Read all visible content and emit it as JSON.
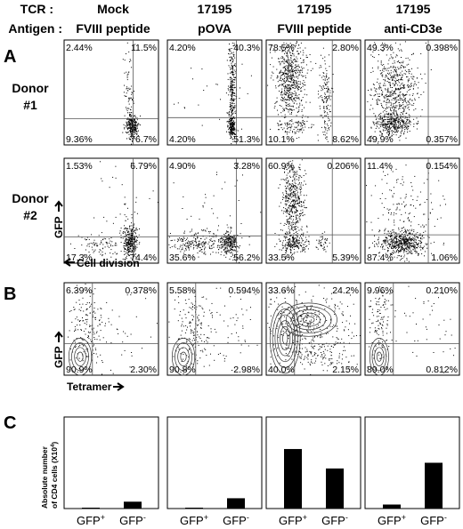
{
  "header": {
    "tcr_label": "TCR :",
    "antigen_label": "Antigen :",
    "columns": [
      {
        "tcr": "Mock",
        "antigen": "FVIII peptide"
      },
      {
        "tcr": "17195",
        "antigen": "pOVA"
      },
      {
        "tcr": "17195",
        "antigen": "FVIII peptide"
      },
      {
        "tcr": "17195",
        "antigen": "anti-CD3e"
      }
    ]
  },
  "panel_a": {
    "letter": "A",
    "donors": [
      {
        "label_line1": "Donor",
        "label_line2": "#1",
        "quadrants": [
          {
            "ul": "2.44%",
            "ur": "11.5%",
            "ll": "9.36%",
            "lr": "76.7%"
          },
          {
            "ul": "4.20%",
            "ur": "40.3%",
            "ll": "4.20%",
            "lr": "51.3%"
          },
          {
            "ul": "78.5%",
            "ur": "2.80%",
            "ll": "10.1%",
            "lr": "8.62%"
          },
          {
            "ul": "49.3%",
            "ur": "0.398%",
            "ll": "49.9%",
            "lr": "0.357%"
          }
        ]
      },
      {
        "label_line1": "Donor",
        "label_line2": "#2",
        "quadrants": [
          {
            "ul": "1.53%",
            "ur": "6.79%",
            "ll": "17.3%",
            "lr": "74.4%"
          },
          {
            "ul": "4.90%",
            "ur": "3.28%",
            "ll": "35.6%",
            "lr": "56.2%"
          },
          {
            "ul": "60.9%",
            "ur": "0.206%",
            "ll": "33.5%",
            "lr": "5.39%"
          },
          {
            "ul": "11.4%",
            "ur": "0.154%",
            "ll": "87.4%",
            "lr": "1.06%"
          }
        ]
      }
    ],
    "y_axis_label": "GFP",
    "x_axis_label": "Cell division"
  },
  "panel_b": {
    "letter": "B",
    "quadrants": [
      {
        "ul": "6.39%",
        "ur": "0.378%",
        "ll": "90.9%",
        "lr": "2.30%"
      },
      {
        "ul": "5.58%",
        "ur": "0.594%",
        "ll": "90.8%",
        "lr": "2.98%"
      },
      {
        "ul": "33.6%",
        "ur": "24.2%",
        "ll": "40.0%",
        "lr": "2.15%"
      },
      {
        "ul": "9.96%",
        "ur": "0.210%",
        "ll": "89.0%",
        "lr": "0.812%"
      }
    ],
    "y_axis_label": "GFP",
    "x_axis_label": "Tetramer"
  },
  "chart_data": {
    "type": "bar",
    "letter": "C",
    "ylabel_line1": "Absolute number",
    "ylabel_line2": "of CD4 cells (X10",
    "ylabel_sup": "4",
    "ylabel_end": ")",
    "categories": [
      "GFP+",
      "GFP-"
    ],
    "category_labels": [
      {
        "base": "GFP",
        "sup": "+"
      },
      {
        "base": "GFP",
        "sup": "-"
      }
    ],
    "ylim": [
      0,
      8
    ],
    "panels": [
      {
        "values": [
          0.02,
          0.6
        ]
      },
      {
        "values": [
          0.05,
          0.9
        ]
      },
      {
        "values": [
          5.2,
          3.5
        ]
      },
      {
        "values": [
          0.35,
          4.0
        ]
      }
    ]
  }
}
